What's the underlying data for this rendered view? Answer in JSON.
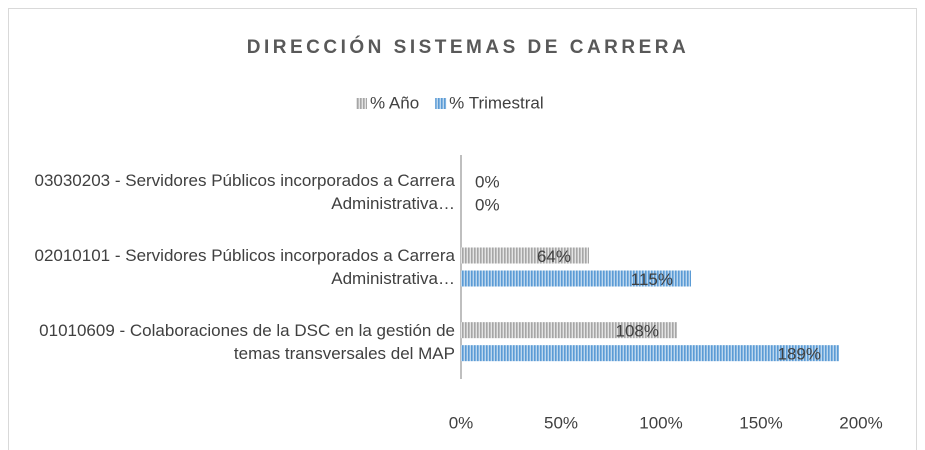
{
  "chart_data": {
    "type": "bar",
    "orientation": "horizontal",
    "title": "DIRECCIÓN SISTEMAS DE CARRERA",
    "categories": [
      "03030203 - Servidores Públicos incorporados a Carrera Administrativa…",
      "02010101 - Servidores Públicos incorporados a Carrera Administrativa…",
      "01010609 - Colaboraciones de la DSC en la gestión de temas transversales del MAP"
    ],
    "series": [
      {
        "name": "% Año",
        "color": "#a6a6a6",
        "values": [
          0,
          64,
          108
        ],
        "value_labels": [
          "0%",
          "64%",
          "108%"
        ]
      },
      {
        "name": "% Trimestral",
        "color": "#5b9bd5",
        "values": [
          0,
          115,
          189
        ],
        "value_labels": [
          "0%",
          "115%",
          "189%"
        ]
      }
    ],
    "xlim": [
      0,
      200
    ],
    "xticks": [
      {
        "value": 0,
        "label": "0%"
      },
      {
        "value": 50,
        "label": "50%"
      },
      {
        "value": 100,
        "label": "100%"
      },
      {
        "value": 150,
        "label": "150%"
      },
      {
        "value": 200,
        "label": "200%"
      }
    ],
    "legend": "top"
  }
}
